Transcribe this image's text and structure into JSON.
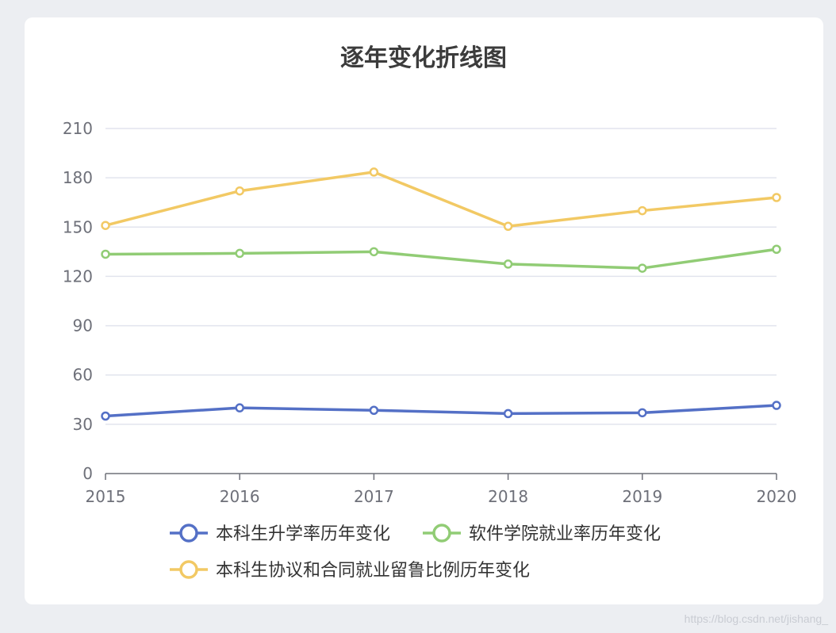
{
  "chart_data": {
    "type": "line",
    "title": "逐年变化折线图",
    "x": [
      "2015",
      "2016",
      "2017",
      "2018",
      "2019",
      "2020"
    ],
    "ylim": [
      0,
      210
    ],
    "yticks": [
      0,
      30,
      60,
      90,
      120,
      150,
      180,
      210
    ],
    "grid": true,
    "legend_position": "bottom",
    "series": [
      {
        "name": "本科生升学率历年变化",
        "color": "#5470c6",
        "values": [
          35,
          40,
          38.5,
          36.5,
          37,
          41.5
        ]
      },
      {
        "name": "软件学院就业率历年变化",
        "color": "#91cc75",
        "values": [
          133.5,
          134,
          135,
          127.5,
          125,
          136.5
        ]
      },
      {
        "name": "本科生协议和合同就业留鲁比例历年变化",
        "color": "#f2c964",
        "values": [
          151,
          172,
          183.5,
          150.5,
          160,
          168
        ]
      }
    ]
  },
  "watermark": "https://blog.csdn.net/jishang_"
}
